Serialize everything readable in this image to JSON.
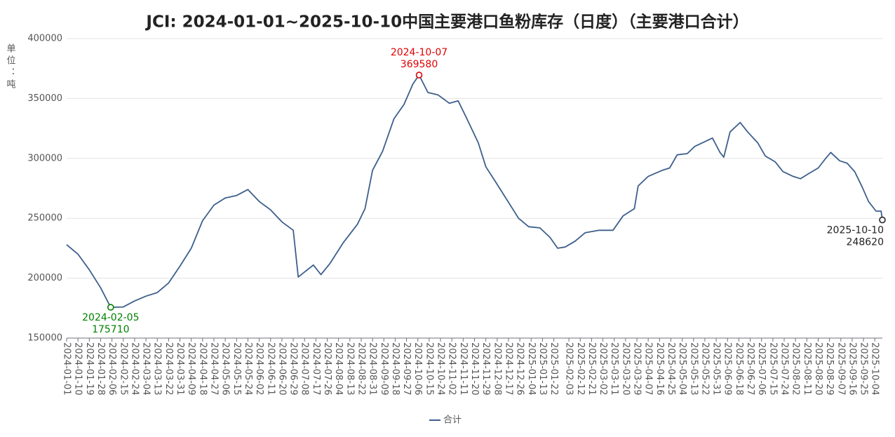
{
  "chart_data": {
    "type": "line",
    "title": "JCI: 2024-01-01~2025-10-10中国主要港口鱼粉库存（日度）（主要港口合计）",
    "y_label": "单位：吨",
    "xlim": [
      "2024-01-01",
      "2025-10-10"
    ],
    "ylim": [
      150000,
      400000
    ],
    "yticks": [
      150000,
      200000,
      250000,
      300000,
      350000,
      400000
    ],
    "grid": true,
    "legend": "bottom",
    "xticks": [
      "2024-01-01",
      "2024-01-10",
      "2024-01-19",
      "2024-01-28",
      "2024-02-06",
      "2024-02-15",
      "2024-02-24",
      "2024-03-04",
      "2024-03-13",
      "2024-03-22",
      "2024-03-31",
      "2024-04-09",
      "2024-04-18",
      "2024-04-27",
      "2024-05-06",
      "2024-05-15",
      "2024-05-24",
      "2024-06-02",
      "2024-06-11",
      "2024-06-20",
      "2024-06-29",
      "2024-07-08",
      "2024-07-17",
      "2024-07-26",
      "2024-08-04",
      "2024-08-13",
      "2024-08-22",
      "2024-08-31",
      "2024-09-09",
      "2024-09-18",
      "2024-09-27",
      "2024-10-06",
      "2024-10-15",
      "2024-10-24",
      "2024-11-02",
      "2024-11-11",
      "2024-11-20",
      "2024-11-29",
      "2024-12-08",
      "2024-12-17",
      "2024-12-26",
      "2025-01-04",
      "2025-01-13",
      "2025-01-22",
      "2025-02-03",
      "2025-02-12",
      "2025-02-21",
      "2025-03-02",
      "2025-03-11",
      "2025-03-20",
      "2025-03-29",
      "2025-04-07",
      "2025-04-16",
      "2025-04-25",
      "2025-05-04",
      "2025-05-13",
      "2025-05-22",
      "2025-05-31",
      "2025-06-09",
      "2025-06-18",
      "2025-06-27",
      "2025-07-06",
      "2025-07-15",
      "2025-07-24",
      "2025-08-02",
      "2025-08-11",
      "2025-08-20",
      "2025-08-29",
      "2025-09-07",
      "2025-09-16",
      "2025-09-25",
      "2025-10-04"
    ],
    "x": [
      "2024-01-01",
      "2024-01-10",
      "2024-01-19",
      "2024-01-28",
      "2024-02-05",
      "2024-02-15",
      "2024-02-24",
      "2024-03-04",
      "2024-03-13",
      "2024-03-22",
      "2024-03-31",
      "2024-04-09",
      "2024-04-18",
      "2024-04-27",
      "2024-05-06",
      "2024-05-15",
      "2024-05-24",
      "2024-06-02",
      "2024-06-11",
      "2024-06-20",
      "2024-06-29",
      "2024-07-03",
      "2024-07-15",
      "2024-07-21",
      "2024-07-28",
      "2024-08-08",
      "2024-08-19",
      "2024-08-25",
      "2024-08-31",
      "2024-09-08",
      "2024-09-17",
      "2024-09-25",
      "2024-10-02",
      "2024-10-07",
      "2024-10-14",
      "2024-10-22",
      "2024-10-31",
      "2024-11-07",
      "2024-11-14",
      "2024-11-23",
      "2024-11-29",
      "2024-12-07",
      "2024-12-16",
      "2024-12-25",
      "2025-01-02",
      "2025-01-11",
      "2025-01-19",
      "2025-01-25",
      "2025-01-31",
      "2025-02-08",
      "2025-02-16",
      "2025-02-27",
      "2025-03-10",
      "2025-03-18",
      "2025-03-27",
      "2025-03-30",
      "2025-04-07",
      "2025-04-18",
      "2025-04-24",
      "2025-04-30",
      "2025-05-08",
      "2025-05-14",
      "2025-05-22",
      "2025-05-28",
      "2025-06-03",
      "2025-06-06",
      "2025-06-11",
      "2025-06-19",
      "2025-06-25",
      "2025-07-03",
      "2025-07-09",
      "2025-07-17",
      "2025-07-23",
      "2025-07-31",
      "2025-08-06",
      "2025-08-12",
      "2025-08-20",
      "2025-08-26",
      "2025-08-30",
      "2025-09-06",
      "2025-09-12",
      "2025-09-18",
      "2025-09-24",
      "2025-09-29",
      "2025-10-05",
      "2025-10-09",
      "2025-10-10"
    ],
    "series": [
      {
        "name": "合计",
        "color": "#3d5f8c",
        "values": [
          228000,
          220000,
          207000,
          192000,
          175710,
          176000,
          181000,
          185000,
          188000,
          196000,
          210000,
          225000,
          248000,
          261000,
          267000,
          269000,
          274000,
          264000,
          257000,
          247000,
          240000,
          201000,
          211000,
          203000,
          212000,
          230000,
          245000,
          258000,
          290000,
          306000,
          333000,
          345000,
          362000,
          369580,
          355000,
          353000,
          346000,
          348000,
          333000,
          313000,
          293000,
          280000,
          265000,
          250000,
          243000,
          242000,
          234000,
          225000,
          226000,
          231000,
          238000,
          240000,
          240000,
          252000,
          258000,
          277000,
          285000,
          290000,
          292000,
          303000,
          304000,
          310000,
          314000,
          317000,
          305000,
          301000,
          322000,
          330000,
          322000,
          313000,
          302000,
          297000,
          289000,
          285000,
          283000,
          287000,
          292000,
          300000,
          305000,
          298000,
          296000,
          289000,
          276000,
          264000,
          256000,
          256000,
          248620
        ]
      }
    ],
    "annotations": [
      {
        "x": "2024-02-05",
        "value": 175710,
        "color": "#008000"
      },
      {
        "x": "2024-10-07",
        "value": 369580,
        "color": "#e00000"
      },
      {
        "x": "2025-10-10",
        "value": 248620,
        "color": "#222222"
      }
    ]
  }
}
